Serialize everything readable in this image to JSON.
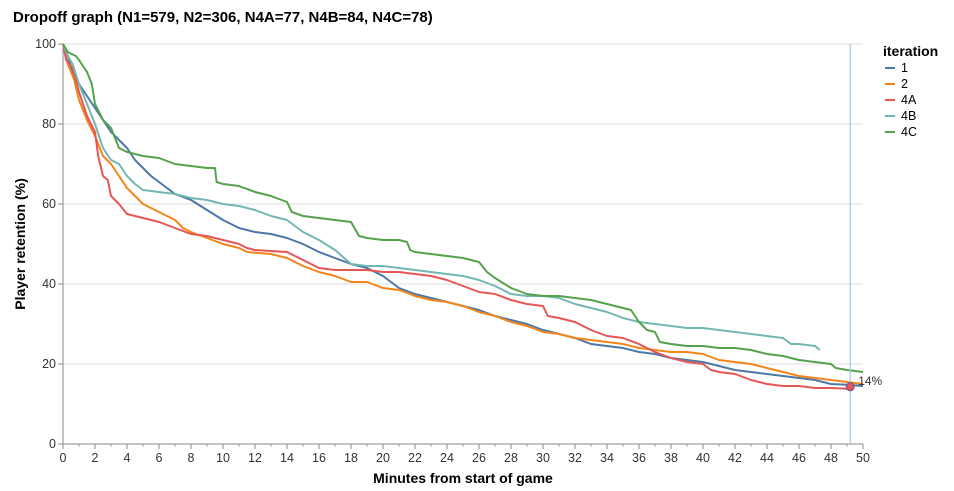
{
  "chart_data": {
    "type": "line",
    "title": "Dropoff graph (N1=579, N2=306, N4A=77, N4B=84, N4C=78)",
    "xlabel": "Minutes from start of game",
    "ylabel": "Player retention (%)",
    "xlim": [
      0,
      50
    ],
    "ylim": [
      0,
      100
    ],
    "x_ticks": [
      0,
      2,
      4,
      6,
      8,
      10,
      12,
      14,
      16,
      18,
      20,
      22,
      24,
      26,
      28,
      30,
      32,
      34,
      36,
      38,
      40,
      42,
      44,
      46,
      48,
      50
    ],
    "y_ticks": [
      0,
      20,
      40,
      60,
      80,
      100
    ],
    "grid": "horizontal",
    "legend": {
      "title": "iteration",
      "position": "right"
    },
    "series": [
      {
        "name": "1",
        "color": "#4c78a8",
        "points": [
          [
            0,
            100
          ],
          [
            0.3,
            97
          ],
          [
            0.6,
            93
          ],
          [
            1,
            90
          ],
          [
            1.5,
            87
          ],
          [
            2,
            84
          ],
          [
            2.5,
            81
          ],
          [
            3,
            78
          ],
          [
            3.5,
            76
          ],
          [
            4,
            74
          ],
          [
            4.5,
            71
          ],
          [
            5,
            69
          ],
          [
            5.5,
            67
          ],
          [
            6,
            65.5
          ],
          [
            7,
            62.5
          ],
          [
            8,
            61
          ],
          [
            9,
            58.5
          ],
          [
            10,
            56
          ],
          [
            11,
            54
          ],
          [
            12,
            53
          ],
          [
            13,
            52.5
          ],
          [
            14,
            51.5
          ],
          [
            15,
            50
          ],
          [
            16,
            48
          ],
          [
            17,
            46.5
          ],
          [
            18,
            45
          ],
          [
            19,
            44
          ],
          [
            20,
            42
          ],
          [
            21,
            39
          ],
          [
            22,
            37.5
          ],
          [
            23,
            36.5
          ],
          [
            24,
            35.5
          ],
          [
            25,
            34.5
          ],
          [
            26,
            33.5
          ],
          [
            27,
            32
          ],
          [
            28,
            31
          ],
          [
            29,
            30
          ],
          [
            30,
            28.5
          ],
          [
            31,
            27.5
          ],
          [
            32,
            26.5
          ],
          [
            33,
            25
          ],
          [
            34,
            24.5
          ],
          [
            35,
            24
          ],
          [
            36,
            23
          ],
          [
            37,
            22.5
          ],
          [
            38,
            21.5
          ],
          [
            39,
            21
          ],
          [
            40,
            20.5
          ],
          [
            41,
            19.5
          ],
          [
            42,
            18.5
          ],
          [
            43,
            18
          ],
          [
            44,
            17.5
          ],
          [
            45,
            17
          ],
          [
            46,
            16.5
          ],
          [
            47,
            16
          ],
          [
            48,
            15
          ],
          [
            49,
            14.8
          ],
          [
            50,
            14.5
          ]
        ]
      },
      {
        "name": "2",
        "color": "#f58518",
        "points": [
          [
            0,
            100
          ],
          [
            0.3,
            95
          ],
          [
            0.7,
            91
          ],
          [
            1,
            86
          ],
          [
            1.5,
            81
          ],
          [
            2,
            77
          ],
          [
            2.5,
            72
          ],
          [
            3,
            70
          ],
          [
            3.5,
            67
          ],
          [
            4,
            64
          ],
          [
            4.5,
            62
          ],
          [
            5,
            60
          ],
          [
            6,
            58
          ],
          [
            7,
            56
          ],
          [
            7.5,
            54
          ],
          [
            8,
            53
          ],
          [
            9,
            51.5
          ],
          [
            10,
            50
          ],
          [
            11,
            49
          ],
          [
            11.5,
            48
          ],
          [
            13,
            47.5
          ],
          [
            14,
            46.5
          ],
          [
            15,
            44.5
          ],
          [
            16,
            43
          ],
          [
            17,
            42
          ],
          [
            18,
            40.5
          ],
          [
            19,
            40.5
          ],
          [
            20,
            39
          ],
          [
            21,
            38.5
          ],
          [
            22,
            37
          ],
          [
            23,
            36
          ],
          [
            24,
            35.5
          ],
          [
            25,
            34.5
          ],
          [
            26,
            33
          ],
          [
            27,
            32
          ],
          [
            28,
            30.5
          ],
          [
            29,
            29.5
          ],
          [
            30,
            28
          ],
          [
            31,
            27.5
          ],
          [
            32,
            26.5
          ],
          [
            33,
            26
          ],
          [
            34,
            25.5
          ],
          [
            35,
            25
          ],
          [
            36,
            24
          ],
          [
            37,
            23.5
          ],
          [
            38,
            23
          ],
          [
            39,
            23
          ],
          [
            40,
            22.5
          ],
          [
            41,
            21
          ],
          [
            42,
            20.5
          ],
          [
            43,
            20
          ],
          [
            44,
            19
          ],
          [
            45,
            18
          ],
          [
            46,
            17
          ],
          [
            47,
            16.5
          ],
          [
            48,
            16
          ],
          [
            49,
            15.5
          ],
          [
            50,
            15
          ]
        ]
      },
      {
        "name": "4A",
        "color": "#e45756",
        "points": [
          [
            0,
            100
          ],
          [
            0.2,
            96
          ],
          [
            0.6,
            94
          ],
          [
            1,
            88
          ],
          [
            1.5,
            82
          ],
          [
            2,
            78
          ],
          [
            2.2,
            72
          ],
          [
            2.5,
            67
          ],
          [
            2.8,
            66
          ],
          [
            3,
            62
          ],
          [
            3.5,
            60
          ],
          [
            4,
            57.5
          ],
          [
            5,
            56.5
          ],
          [
            6,
            55.5
          ],
          [
            7,
            54
          ],
          [
            8,
            52.5
          ],
          [
            9,
            52
          ],
          [
            10,
            51
          ],
          [
            11,
            50
          ],
          [
            11.5,
            49
          ],
          [
            12,
            48.5
          ],
          [
            14,
            48
          ],
          [
            15,
            46
          ],
          [
            16,
            44
          ],
          [
            17,
            43.5
          ],
          [
            18,
            43.5
          ],
          [
            19,
            43.5
          ],
          [
            20,
            43
          ],
          [
            21,
            43
          ],
          [
            22,
            42.5
          ],
          [
            23,
            42
          ],
          [
            24,
            41
          ],
          [
            25,
            39.5
          ],
          [
            26,
            38
          ],
          [
            27,
            37.5
          ],
          [
            28,
            36
          ],
          [
            29,
            35
          ],
          [
            30,
            34.5
          ],
          [
            30.3,
            32
          ],
          [
            31,
            31.5
          ],
          [
            32,
            30.5
          ],
          [
            33,
            28.5
          ],
          [
            34,
            27
          ],
          [
            35,
            26.5
          ],
          [
            36,
            25
          ],
          [
            37,
            23
          ],
          [
            38,
            21.5
          ],
          [
            39,
            20.5
          ],
          [
            40,
            20
          ],
          [
            40.5,
            18.5
          ],
          [
            41,
            18
          ],
          [
            42,
            17.5
          ],
          [
            43,
            16
          ],
          [
            44,
            15
          ],
          [
            45,
            14.5
          ],
          [
            46,
            14.5
          ],
          [
            47,
            14
          ],
          [
            48,
            14
          ],
          [
            49,
            13.8
          ]
        ]
      },
      {
        "name": "4B",
        "color": "#72b7b2",
        "points": [
          [
            0,
            100
          ],
          [
            0.3,
            97
          ],
          [
            0.6,
            95
          ],
          [
            1,
            90
          ],
          [
            1.5,
            85
          ],
          [
            2,
            80
          ],
          [
            2.5,
            74
          ],
          [
            3,
            71
          ],
          [
            3.5,
            70
          ],
          [
            4,
            67
          ],
          [
            4.5,
            65
          ],
          [
            5,
            63.5
          ],
          [
            6,
            63
          ],
          [
            7,
            62.5
          ],
          [
            8,
            61.5
          ],
          [
            9,
            61
          ],
          [
            10,
            60
          ],
          [
            11,
            59.5
          ],
          [
            12,
            58.5
          ],
          [
            13,
            57
          ],
          [
            14,
            56
          ],
          [
            15,
            53
          ],
          [
            16,
            51
          ],
          [
            17,
            48.5
          ],
          [
            18,
            45
          ],
          [
            19,
            44.5
          ],
          [
            20,
            44.5
          ],
          [
            21,
            44
          ],
          [
            22,
            43.5
          ],
          [
            23,
            43
          ],
          [
            24,
            42.5
          ],
          [
            25,
            42
          ],
          [
            26,
            41
          ],
          [
            27,
            39.5
          ],
          [
            28,
            37.5
          ],
          [
            29,
            37
          ],
          [
            30,
            37
          ],
          [
            31,
            36.5
          ],
          [
            32,
            35
          ],
          [
            33,
            34
          ],
          [
            34,
            33
          ],
          [
            35,
            31.5
          ],
          [
            36,
            30.5
          ],
          [
            37,
            30
          ],
          [
            38,
            29.5
          ],
          [
            39,
            29
          ],
          [
            40,
            29
          ],
          [
            41,
            28.5
          ],
          [
            42,
            28
          ],
          [
            43,
            27.5
          ],
          [
            44,
            27
          ],
          [
            45,
            26.5
          ],
          [
            45.5,
            25
          ],
          [
            46,
            25
          ],
          [
            47,
            24.5
          ],
          [
            47.3,
            23.5
          ]
        ]
      },
      {
        "name": "4C",
        "color": "#54a24b",
        "points": [
          [
            0,
            100
          ],
          [
            0.3,
            98
          ],
          [
            0.8,
            97
          ],
          [
            1,
            96
          ],
          [
            1.5,
            93
          ],
          [
            1.8,
            90
          ],
          [
            2,
            85
          ],
          [
            2.5,
            81
          ],
          [
            3,
            79
          ],
          [
            3.5,
            74
          ],
          [
            4,
            73
          ],
          [
            5,
            72
          ],
          [
            6,
            71.5
          ],
          [
            7,
            70
          ],
          [
            8,
            69.5
          ],
          [
            9,
            69
          ],
          [
            9.5,
            69
          ],
          [
            9.6,
            65.5
          ],
          [
            10,
            65
          ],
          [
            11,
            64.5
          ],
          [
            12,
            63
          ],
          [
            13,
            62
          ],
          [
            14,
            60.5
          ],
          [
            14.3,
            58
          ],
          [
            15,
            57
          ],
          [
            16,
            56.5
          ],
          [
            17,
            56
          ],
          [
            18,
            55.5
          ],
          [
            18.5,
            52
          ],
          [
            19,
            51.5
          ],
          [
            20,
            51
          ],
          [
            21,
            51
          ],
          [
            21.5,
            50.5
          ],
          [
            21.7,
            48.5
          ],
          [
            22,
            48
          ],
          [
            23,
            47.5
          ],
          [
            24,
            47
          ],
          [
            25,
            46.5
          ],
          [
            26,
            45.5
          ],
          [
            26.5,
            43
          ],
          [
            27,
            41.5
          ],
          [
            28,
            39
          ],
          [
            29,
            37.5
          ],
          [
            30,
            37
          ],
          [
            31,
            37
          ],
          [
            32,
            36.5
          ],
          [
            33,
            36
          ],
          [
            34,
            35
          ],
          [
            35,
            34
          ],
          [
            35.5,
            33.5
          ],
          [
            36,
            30.5
          ],
          [
            36.5,
            28.5
          ],
          [
            37,
            28
          ],
          [
            37.3,
            25.5
          ],
          [
            38,
            25
          ],
          [
            39,
            24.5
          ],
          [
            40,
            24.5
          ],
          [
            41,
            24
          ],
          [
            42,
            24
          ],
          [
            43,
            23.5
          ],
          [
            44,
            22.5
          ],
          [
            45,
            22
          ],
          [
            46,
            21
          ],
          [
            47,
            20.5
          ],
          [
            48,
            20
          ],
          [
            48.3,
            19
          ],
          [
            49,
            18.5
          ],
          [
            50,
            18
          ]
        ]
      }
    ],
    "highlight": {
      "x": 49.2,
      "y": 14.3,
      "label": "14%",
      "color": "#e45756"
    },
    "vertical_rule_x": 49.2,
    "vertical_rule_color": "#9ecae1"
  }
}
